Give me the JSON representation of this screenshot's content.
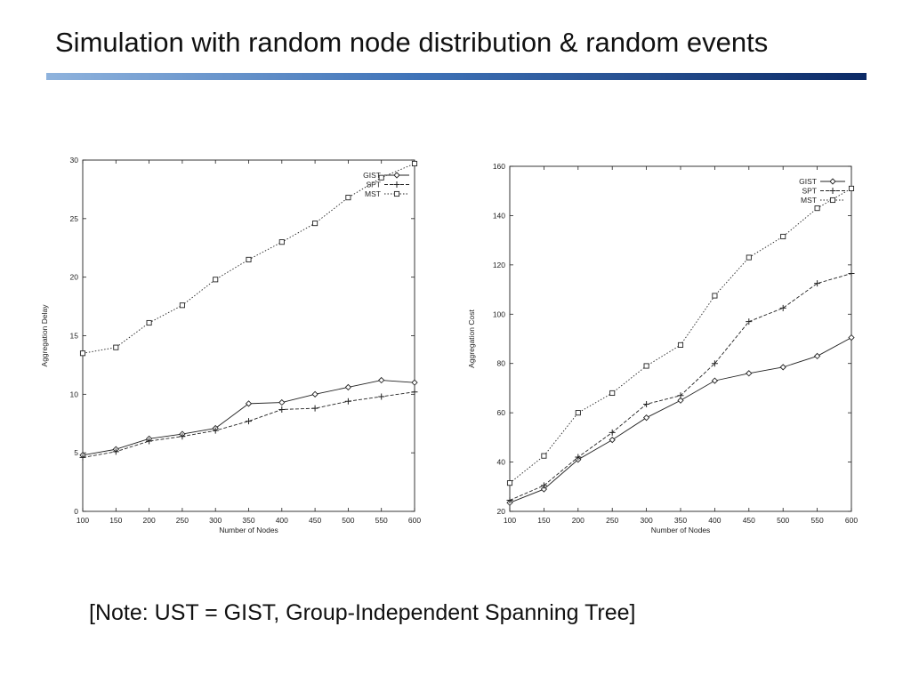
{
  "slide": {
    "title": "Simulation with random node distribution & random events",
    "note": "[Note: UST = GIST, Group-Independent Spanning Tree]"
  },
  "chart_data": [
    {
      "type": "line",
      "xlabel": "Number of Nodes",
      "ylabel": "Aggregation Delay",
      "xlim": [
        100,
        600
      ],
      "ylim": [
        0,
        30
      ],
      "x_ticks": [
        100,
        150,
        200,
        250,
        300,
        350,
        400,
        450,
        500,
        550,
        600
      ],
      "y_ticks": [
        0,
        5,
        10,
        15,
        20,
        25,
        30
      ],
      "legend_position": "top-right",
      "x": [
        100,
        150,
        200,
        250,
        300,
        350,
        400,
        450,
        500,
        550,
        600
      ],
      "series": [
        {
          "name": "GIST",
          "marker": "diamond",
          "dash": "solid",
          "values": [
            4.8,
            5.3,
            6.2,
            6.6,
            7.1,
            9.2,
            9.3,
            10.0,
            10.6,
            11.2,
            11.0
          ]
        },
        {
          "name": "SPT",
          "marker": "plus",
          "dash": "dashed",
          "values": [
            4.6,
            5.1,
            6.0,
            6.4,
            6.9,
            7.7,
            8.7,
            8.8,
            9.4,
            9.8,
            10.2
          ]
        },
        {
          "name": "MST",
          "marker": "square",
          "dash": "dotted",
          "values": [
            13.5,
            14.0,
            16.1,
            17.6,
            19.8,
            21.5,
            23.0,
            24.6,
            26.8,
            28.5,
            29.7
          ]
        }
      ]
    },
    {
      "type": "line",
      "xlabel": "Number of Nodes",
      "ylabel": "Aggregation Cost",
      "xlim": [
        100,
        600
      ],
      "ylim": [
        20,
        160
      ],
      "x_ticks": [
        100,
        150,
        200,
        250,
        300,
        350,
        400,
        450,
        500,
        550,
        600
      ],
      "y_ticks": [
        20,
        40,
        60,
        80,
        100,
        120,
        140,
        160
      ],
      "legend_position": "top-right",
      "x": [
        100,
        150,
        200,
        250,
        300,
        350,
        400,
        450,
        500,
        550,
        600
      ],
      "series": [
        {
          "name": "GIST",
          "marker": "diamond",
          "dash": "solid",
          "values": [
            23.5,
            29.0,
            41.0,
            49.0,
            58.0,
            65.0,
            73.0,
            76.0,
            78.5,
            83.0,
            90.5
          ]
        },
        {
          "name": "SPT",
          "marker": "plus",
          "dash": "dashed",
          "values": [
            24.5,
            30.5,
            42.0,
            52.0,
            63.5,
            67.0,
            80.0,
            97.0,
            102.5,
            112.5,
            116.5
          ]
        },
        {
          "name": "MST",
          "marker": "square",
          "dash": "dotted",
          "values": [
            31.5,
            42.5,
            60.0,
            68.0,
            79.0,
            87.5,
            107.5,
            123.0,
            131.5,
            143.0,
            151.0
          ]
        }
      ]
    }
  ]
}
